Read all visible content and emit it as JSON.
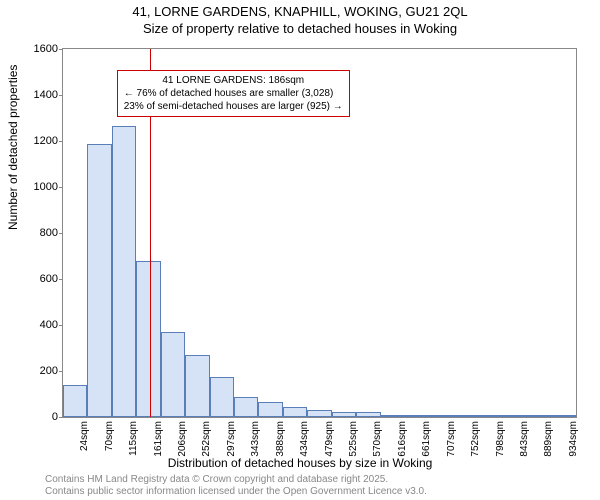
{
  "title_line1": "41, LORNE GARDENS, KNAPHILL, WOKING, GU21 2QL",
  "title_line2": "Size of property relative to detached houses in Woking",
  "y_axis_label": "Number of detached properties",
  "x_axis_label": "Distribution of detached houses by size in Woking",
  "footer_line1": "Contains HM Land Registry data © Crown copyright and database right 2025.",
  "footer_line2": "Contains public sector information licensed under the Open Government Licence v3.0.",
  "chart": {
    "type": "histogram",
    "ylim": [
      0,
      1600
    ],
    "ytick_step": 200,
    "y_ticks": [
      0,
      200,
      400,
      600,
      800,
      1000,
      1200,
      1400,
      1600
    ],
    "x_labels": [
      "24sqm",
      "70sqm",
      "115sqm",
      "161sqm",
      "206sqm",
      "252sqm",
      "297sqm",
      "343sqm",
      "388sqm",
      "434sqm",
      "479sqm",
      "525sqm",
      "570sqm",
      "616sqm",
      "661sqm",
      "707sqm",
      "752sqm",
      "798sqm",
      "843sqm",
      "889sqm",
      "934sqm"
    ],
    "values": [
      140,
      1185,
      1265,
      680,
      370,
      270,
      175,
      85,
      65,
      45,
      32,
      20,
      22,
      10,
      6,
      4,
      4,
      2,
      2,
      2,
      2
    ],
    "bar_fill": "#d6e2f5",
    "bar_stroke": "#5a7fb8",
    "bar_width_ratio": 1.0,
    "background_color": "#ffffff",
    "axis_color": "#888888",
    "tick_fontsize": 11,
    "vline": {
      "x_index": 3.55,
      "color": "#cc0000"
    },
    "annotation": {
      "lines": [
        "41 LORNE GARDENS: 186sqm",
        "← 76% of detached houses are smaller (3,028)",
        "23% of semi-detached houses are larger (925) →"
      ],
      "border_color": "#cc0000",
      "left_index": 2.2,
      "top_value": 1510
    }
  }
}
